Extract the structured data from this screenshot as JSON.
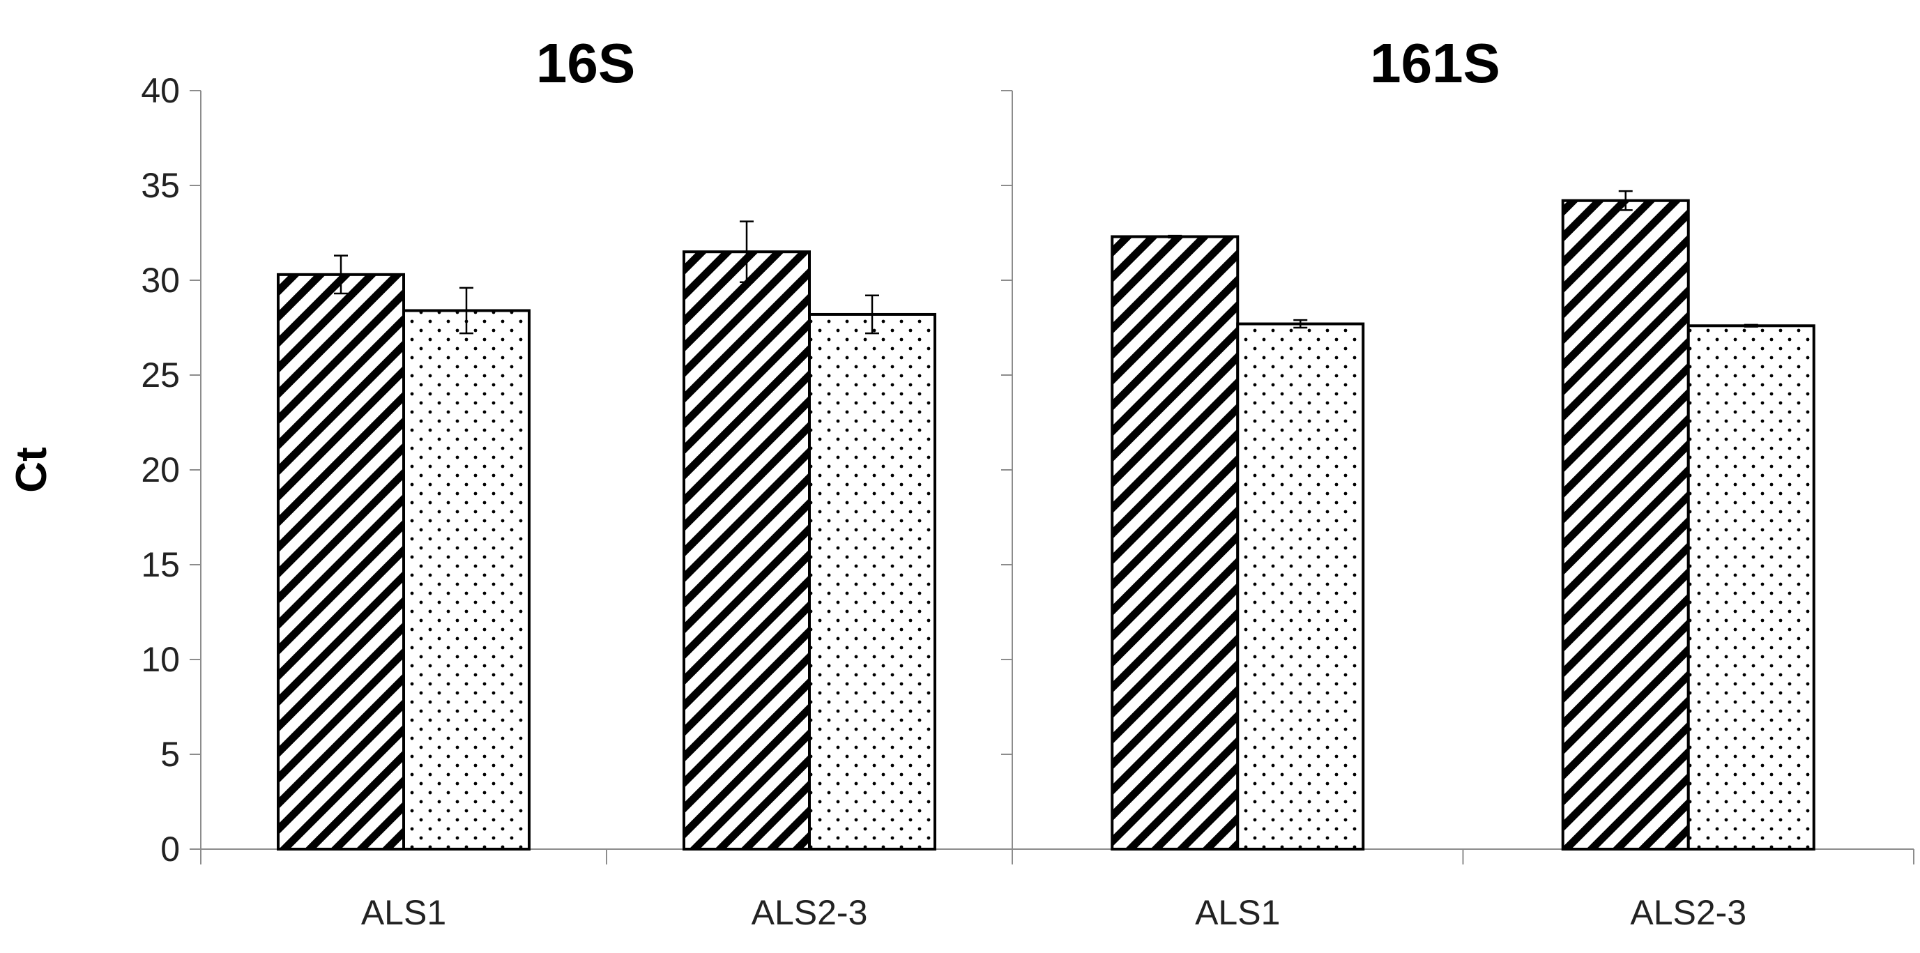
{
  "chart_data": [
    {
      "type": "bar",
      "title": "16S",
      "ylabel": "Ct",
      "xlabel": "",
      "ylim": [
        0,
        40
      ],
      "yticks": [
        0,
        5,
        10,
        15,
        20,
        25,
        30,
        35,
        40
      ],
      "categories": [
        "ALS1",
        "ALS2-3"
      ],
      "series": [
        {
          "pattern": "diagonal-hatch",
          "values": [
            30.3,
            31.5
          ],
          "errors": [
            1.0,
            1.6
          ]
        },
        {
          "pattern": "dots",
          "values": [
            28.4,
            28.2
          ],
          "errors": [
            1.2,
            1.0
          ]
        }
      ]
    },
    {
      "type": "bar",
      "title": "161S",
      "ylabel": "",
      "xlabel": "",
      "ylim": [
        0,
        40
      ],
      "categories": [
        "ALS1",
        "ALS2-3"
      ],
      "series": [
        {
          "pattern": "diagonal-hatch",
          "values": [
            32.3,
            34.2
          ],
          "errors": [
            0.05,
            0.5
          ]
        },
        {
          "pattern": "dots",
          "values": [
            27.7,
            27.6
          ],
          "errors": [
            0.2,
            0.05
          ]
        }
      ]
    }
  ],
  "colors": {
    "bar_outline": "#000000",
    "axis": "#8c8c8c",
    "fill": "#ffffff"
  }
}
